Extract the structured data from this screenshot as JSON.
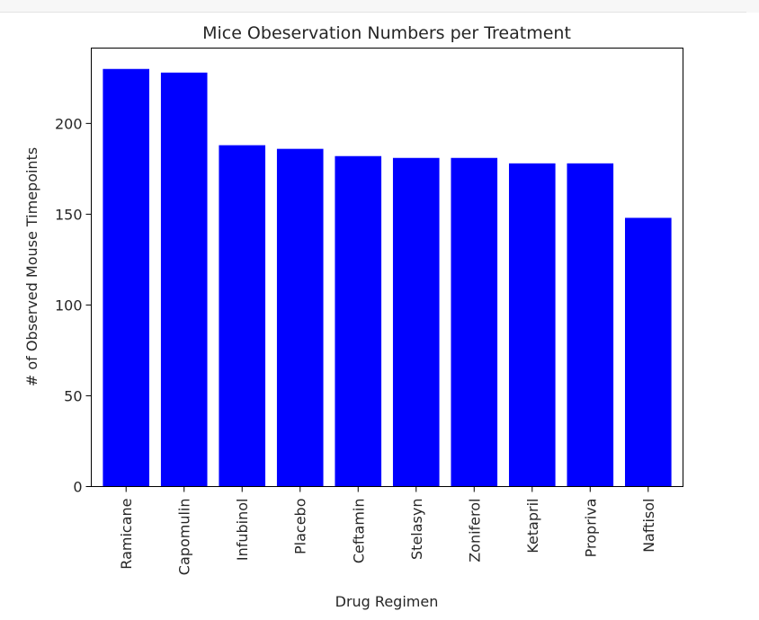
{
  "cell": {
    "top_strip_label": ""
  },
  "chart_data": {
    "type": "bar",
    "title": "Mice Obeservation Numbers per Treatment",
    "xlabel": "Drug Regimen",
    "ylabel": "# of Observed Mouse Timepoints",
    "categories": [
      "Ramicane",
      "Capomulin",
      "Infubinol",
      "Placebo",
      "Ceftamin",
      "Stelasyn",
      "Zoniferol",
      "Ketapril",
      "Propriva",
      "Naftisol"
    ],
    "values": [
      230,
      228,
      188,
      186,
      182,
      181,
      181,
      178,
      178,
      148
    ],
    "yticks": [
      0,
      50,
      100,
      150,
      200
    ],
    "ytick_labels": [
      "0",
      "50",
      "100",
      "150",
      "200"
    ],
    "ylim": [
      0,
      241.5
    ],
    "bar_color": "#0000ff",
    "grid": false,
    "legend": "none"
  }
}
